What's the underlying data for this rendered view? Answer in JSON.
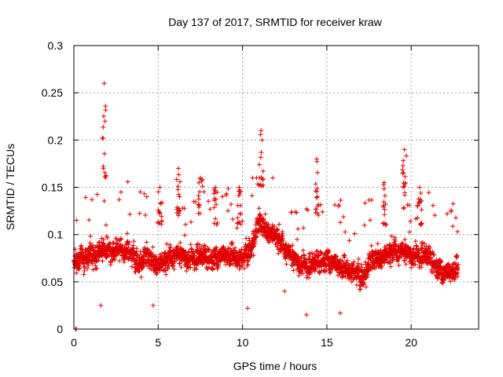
{
  "chart_data": {
    "type": "scatter",
    "title": "Day 137 of 2017, SRMTID for receiver kraw",
    "xlabel": "GPS time / hours",
    "ylabel": "SRMTID / TECUs",
    "xlim": [
      0,
      24
    ],
    "ylim": [
      0,
      0.3
    ],
    "x_ticks": [
      0,
      5,
      10,
      15,
      20
    ],
    "x_tick_labels": [
      "0",
      "5",
      "10",
      "15",
      "20"
    ],
    "y_ticks": [
      0,
      0.05,
      0.1,
      0.15,
      0.2,
      0.25,
      0.3
    ],
    "y_tick_labels": [
      "0",
      "0.05",
      "0.1",
      "0.15",
      "0.2",
      "0.25",
      "0.3"
    ],
    "grid": true,
    "marker": "+",
    "series": [
      {
        "name": "SRMTID",
        "color": "#e00000",
        "x_range": [
          0,
          22.8
        ],
        "sample_spacing_hours": 0.0083,
        "typical_range": [
          0.03,
          0.15
        ],
        "baseline_profile": [
          [
            0,
            0.07
          ],
          [
            1,
            0.08
          ],
          [
            2,
            0.085
          ],
          [
            3,
            0.085
          ],
          [
            4,
            0.075
          ],
          [
            5,
            0.07
          ],
          [
            6,
            0.08
          ],
          [
            7,
            0.075
          ],
          [
            8,
            0.075
          ],
          [
            9,
            0.08
          ],
          [
            10,
            0.075
          ],
          [
            11,
            0.11
          ],
          [
            12,
            0.1
          ],
          [
            13,
            0.075
          ],
          [
            14,
            0.065
          ],
          [
            15,
            0.075
          ],
          [
            16,
            0.065
          ],
          [
            17,
            0.06
          ],
          [
            18,
            0.075
          ],
          [
            19,
            0.085
          ],
          [
            20,
            0.08
          ],
          [
            21,
            0.075
          ],
          [
            22,
            0.06
          ],
          [
            22.8,
            0.065
          ]
        ],
        "peaks": [
          {
            "x": 1.8,
            "max": 0.26,
            "min": 0.16
          },
          {
            "x": 11.1,
            "max": 0.21,
            "min": 0.15
          },
          {
            "x": 14.4,
            "max": 0.18,
            "min": 0.12
          },
          {
            "x": 19.6,
            "max": 0.19,
            "min": 0.14
          },
          {
            "x": 6.2,
            "max": 0.17,
            "min": 0.12
          },
          {
            "x": 7.5,
            "max": 0.16,
            "min": 0.12
          },
          {
            "x": 8.4,
            "max": 0.15,
            "min": 0.11
          },
          {
            "x": 18.4,
            "max": 0.155,
            "min": 0.11
          },
          {
            "x": 20.5,
            "max": 0.15,
            "min": 0.11
          },
          {
            "x": 5.1,
            "max": 0.15,
            "min": 0.11
          },
          {
            "x": 9.8,
            "max": 0.15,
            "min": 0.11
          }
        ],
        "outliers": [
          [
            0.1,
            0.0
          ],
          [
            0.15,
            0.0
          ],
          [
            13.8,
            0.015
          ],
          [
            15.8,
            0.017
          ],
          [
            1.6,
            0.025
          ],
          [
            10.3,
            0.022
          ],
          [
            4.7,
            0.025
          ],
          [
            12.5,
            0.04
          ]
        ]
      }
    ]
  }
}
